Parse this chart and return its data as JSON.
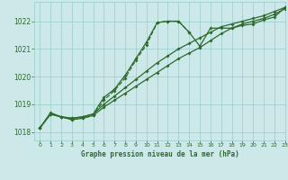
{
  "title": "Graphe pression niveau de la mer (hPa)",
  "xlim": [
    -0.5,
    23
  ],
  "ylim": [
    1017.7,
    1022.7
  ],
  "yticks": [
    1018,
    1019,
    1020,
    1021,
    1022
  ],
  "xticks": [
    0,
    1,
    2,
    3,
    4,
    5,
    6,
    7,
    8,
    9,
    10,
    11,
    12,
    13,
    14,
    15,
    16,
    17,
    18,
    19,
    20,
    21,
    22,
    23
  ],
  "bg_color": "#cce8e8",
  "grid_color": "#99cccc",
  "line_color": "#2d6a2d",
  "line1_x": [
    0,
    1,
    2,
    3,
    4,
    5,
    6,
    7,
    8,
    9,
    10,
    11,
    12,
    13,
    14,
    15,
    16,
    17,
    18,
    19,
    20,
    21,
    22,
    23
  ],
  "line1": [
    1018.15,
    1018.65,
    1018.55,
    1018.45,
    1018.5,
    1018.6,
    1018.9,
    1019.15,
    1019.4,
    1019.65,
    1019.9,
    1020.15,
    1020.4,
    1020.65,
    1020.85,
    1021.05,
    1021.3,
    1021.55,
    1021.75,
    1021.9,
    1022.0,
    1022.1,
    1022.25,
    1022.45
  ],
  "line2_x": [
    0,
    1,
    2,
    3,
    4,
    5,
    6,
    7,
    8,
    9,
    10,
    11,
    12,
    13,
    14,
    15,
    16,
    17,
    18,
    19,
    20,
    21,
    22,
    23
  ],
  "line2": [
    1018.15,
    1018.65,
    1018.55,
    1018.5,
    1018.55,
    1018.65,
    1019.0,
    1019.3,
    1019.6,
    1019.9,
    1020.2,
    1020.5,
    1020.75,
    1021.0,
    1021.2,
    1021.4,
    1021.6,
    1021.8,
    1021.9,
    1022.0,
    1022.1,
    1022.2,
    1022.35,
    1022.5
  ],
  "line3_x": [
    0,
    1,
    2,
    3,
    4,
    5,
    6,
    7,
    8,
    9,
    10,
    11,
    12,
    13,
    14,
    15,
    16,
    17,
    18,
    19,
    20,
    21,
    22,
    23
  ],
  "line3": [
    1018.15,
    1018.7,
    1018.55,
    1018.5,
    1018.55,
    1018.65,
    1019.25,
    1019.55,
    1020.05,
    1020.65,
    1021.25,
    1021.95,
    1022.0,
    1022.0,
    1021.6,
    1021.1,
    1021.75,
    1021.75,
    1021.75,
    1021.85,
    1021.9,
    1022.05,
    1022.15,
    1022.5
  ],
  "line4_x": [
    0,
    1,
    2,
    3,
    4,
    5,
    6,
    7,
    8,
    9,
    10,
    11,
    12,
    13,
    14
  ],
  "line4": [
    1018.15,
    1018.65,
    1018.55,
    1018.45,
    1018.5,
    1018.6,
    1019.15,
    1019.5,
    1019.95,
    1020.6,
    1021.15,
    1021.95,
    1022.0,
    1022.0,
    1021.6
  ]
}
